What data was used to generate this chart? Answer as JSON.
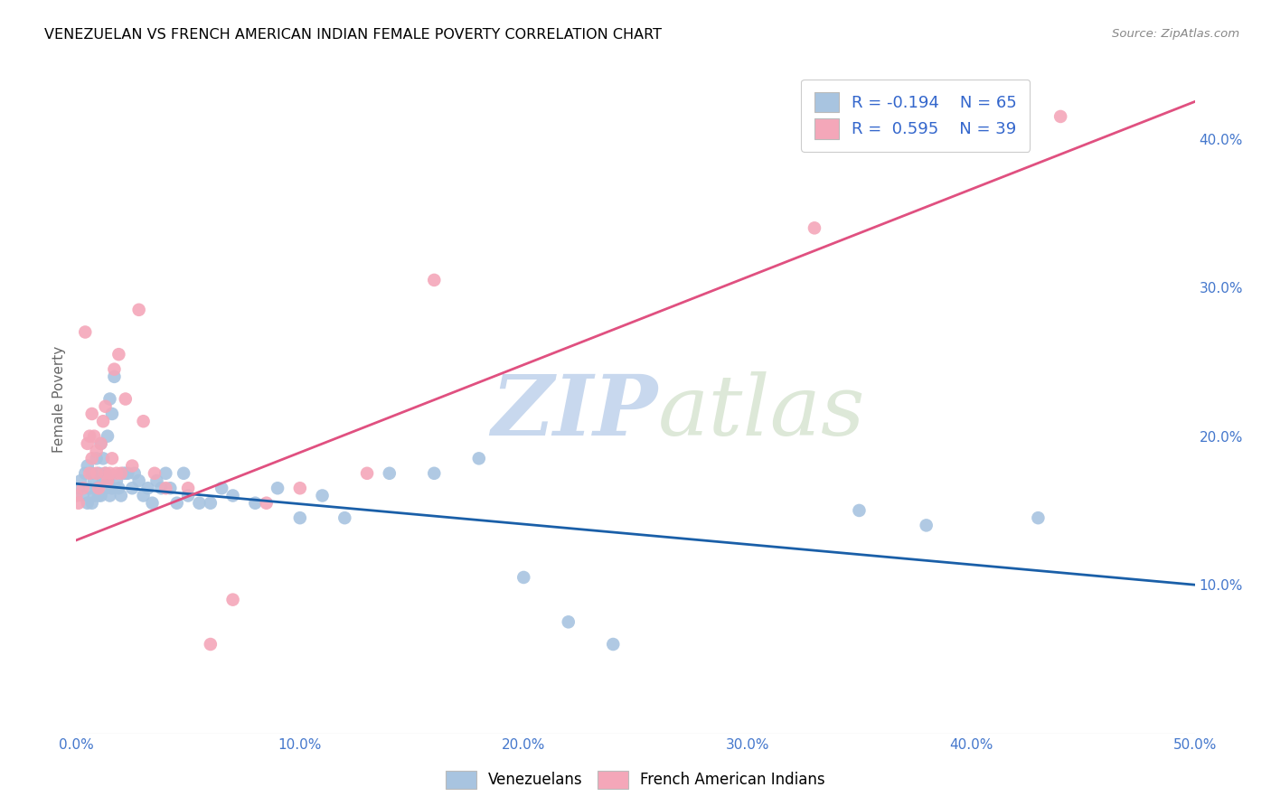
{
  "title": "VENEZUELAN VS FRENCH AMERICAN INDIAN FEMALE POVERTY CORRELATION CHART",
  "source": "Source: ZipAtlas.com",
  "ylabel": "Female Poverty",
  "xlim": [
    0.0,
    0.5
  ],
  "ylim": [
    0.0,
    0.45
  ],
  "xtick_labels": [
    "0.0%",
    "10.0%",
    "20.0%",
    "30.0%",
    "40.0%",
    "50.0%"
  ],
  "xtick_values": [
    0.0,
    0.1,
    0.2,
    0.3,
    0.4,
    0.5
  ],
  "ytick_labels_right": [
    "10.0%",
    "20.0%",
    "30.0%",
    "40.0%"
  ],
  "ytick_values_right": [
    0.1,
    0.2,
    0.3,
    0.4
  ],
  "color_venezuelan": "#a8c4e0",
  "color_french": "#f4a7b9",
  "color_trend_venezuelan": "#1a5fa8",
  "color_trend_french": "#e05080",
  "watermark_zip": "ZIP",
  "watermark_atlas": "atlas",
  "venezuelan_x": [
    0.001,
    0.002,
    0.003,
    0.004,
    0.005,
    0.005,
    0.006,
    0.007,
    0.007,
    0.008,
    0.008,
    0.009,
    0.009,
    0.01,
    0.01,
    0.011,
    0.011,
    0.012,
    0.012,
    0.013,
    0.013,
    0.014,
    0.014,
    0.015,
    0.015,
    0.016,
    0.016,
    0.017,
    0.018,
    0.019,
    0.02,
    0.021,
    0.022,
    0.023,
    0.025,
    0.026,
    0.028,
    0.03,
    0.032,
    0.034,
    0.036,
    0.038,
    0.04,
    0.042,
    0.045,
    0.048,
    0.05,
    0.055,
    0.06,
    0.065,
    0.07,
    0.08,
    0.09,
    0.1,
    0.11,
    0.12,
    0.14,
    0.16,
    0.18,
    0.2,
    0.22,
    0.24,
    0.35,
    0.38,
    0.43
  ],
  "venezuelan_y": [
    0.165,
    0.17,
    0.16,
    0.175,
    0.155,
    0.18,
    0.165,
    0.155,
    0.175,
    0.16,
    0.17,
    0.165,
    0.185,
    0.16,
    0.175,
    0.16,
    0.195,
    0.17,
    0.185,
    0.175,
    0.165,
    0.2,
    0.17,
    0.16,
    0.225,
    0.215,
    0.165,
    0.24,
    0.17,
    0.165,
    0.16,
    0.175,
    0.175,
    0.175,
    0.165,
    0.175,
    0.17,
    0.16,
    0.165,
    0.155,
    0.17,
    0.165,
    0.175,
    0.165,
    0.155,
    0.175,
    0.16,
    0.155,
    0.155,
    0.165,
    0.16,
    0.155,
    0.165,
    0.145,
    0.16,
    0.145,
    0.175,
    0.175,
    0.185,
    0.105,
    0.075,
    0.06,
    0.15,
    0.14,
    0.145
  ],
  "french_x": [
    0.0,
    0.001,
    0.003,
    0.004,
    0.005,
    0.006,
    0.006,
    0.007,
    0.007,
    0.008,
    0.009,
    0.009,
    0.01,
    0.011,
    0.012,
    0.013,
    0.013,
    0.014,
    0.015,
    0.016,
    0.017,
    0.018,
    0.019,
    0.02,
    0.022,
    0.025,
    0.028,
    0.03,
    0.035,
    0.04,
    0.05,
    0.06,
    0.07,
    0.085,
    0.1,
    0.13,
    0.16,
    0.33,
    0.44
  ],
  "french_y": [
    0.16,
    0.155,
    0.165,
    0.27,
    0.195,
    0.175,
    0.2,
    0.185,
    0.215,
    0.2,
    0.175,
    0.19,
    0.165,
    0.195,
    0.21,
    0.175,
    0.22,
    0.17,
    0.175,
    0.185,
    0.245,
    0.175,
    0.255,
    0.175,
    0.225,
    0.18,
    0.285,
    0.21,
    0.175,
    0.165,
    0.165,
    0.06,
    0.09,
    0.155,
    0.165,
    0.175,
    0.305,
    0.34,
    0.415
  ],
  "trend_ven_x0": 0.0,
  "trend_ven_x1": 0.5,
  "trend_ven_y0": 0.168,
  "trend_ven_y1": 0.1,
  "trend_fre_x0": 0.0,
  "trend_fre_x1": 0.5,
  "trend_fre_y0": 0.13,
  "trend_fre_y1": 0.425
}
